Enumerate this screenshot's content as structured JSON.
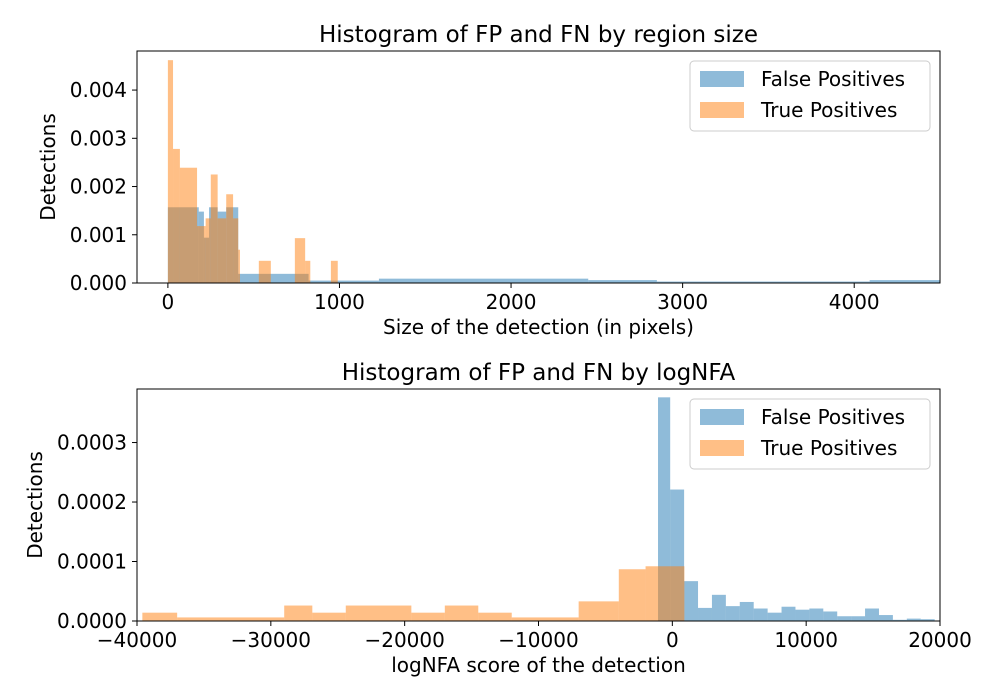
{
  "chart_data": [
    {
      "type": "histogram",
      "title": "Histogram of FP and FN by region size",
      "xlabel": "Size of the detection (in pixels)",
      "ylabel": "Detections",
      "xlim": [
        -180,
        4500
      ],
      "ylim": [
        0,
        0.00481
      ],
      "xticks": [
        {
          "v": 0,
          "label": "0"
        },
        {
          "v": 1000,
          "label": "1000"
        },
        {
          "v": 2000,
          "label": "2000"
        },
        {
          "v": 3000,
          "label": "3000"
        },
        {
          "v": 4000,
          "label": "4000"
        }
      ],
      "yticks": [
        {
          "v": 0,
          "label": "0.000"
        },
        {
          "v": 0.001,
          "label": "0.001"
        },
        {
          "v": 0.002,
          "label": "0.002"
        },
        {
          "v": 0.003,
          "label": "0.003"
        },
        {
          "v": 0.004,
          "label": "0.004"
        }
      ],
      "legend": {
        "position": "upper right"
      },
      "series": [
        {
          "name": "False Positives",
          "color": "#1f77b4",
          "opacity": 0.5,
          "bins": [
            {
              "x0": 0,
              "x1": 180,
              "y": 0.00157
            },
            {
              "x0": 180,
              "x1": 210,
              "y": 0.00148
            },
            {
              "x0": 210,
              "x1": 240,
              "y": 0.00094
            },
            {
              "x0": 240,
              "x1": 290,
              "y": 0.00157
            },
            {
              "x0": 290,
              "x1": 340,
              "y": 0.00148
            },
            {
              "x0": 340,
              "x1": 410,
              "y": 0.00157
            },
            {
              "x0": 410,
              "x1": 820,
              "y": 0.00019
            },
            {
              "x0": 820,
              "x1": 1230,
              "y": 5e-05
            },
            {
              "x0": 1230,
              "x1": 2450,
              "y": 9e-05
            },
            {
              "x0": 2450,
              "x1": 2850,
              "y": 6e-05
            },
            {
              "x0": 2850,
              "x1": 4090,
              "y": 3e-05
            },
            {
              "x0": 4090,
              "x1": 4500,
              "y": 6e-05
            }
          ]
        },
        {
          "name": "True Positives",
          "color": "#ff7f0e",
          "opacity": 0.5,
          "bins": [
            {
              "x0": 0,
              "x1": 30,
              "y": 0.00462
            },
            {
              "x0": 30,
              "x1": 70,
              "y": 0.00278
            },
            {
              "x0": 70,
              "x1": 170,
              "y": 0.00239
            },
            {
              "x0": 170,
              "x1": 220,
              "y": 0.00118
            },
            {
              "x0": 220,
              "x1": 250,
              "y": 0.00134
            },
            {
              "x0": 250,
              "x1": 290,
              "y": 0.00225
            },
            {
              "x0": 290,
              "x1": 340,
              "y": 0.00134
            },
            {
              "x0": 340,
              "x1": 380,
              "y": 0.00184
            },
            {
              "x0": 380,
              "x1": 410,
              "y": 0.00134
            },
            {
              "x0": 410,
              "x1": 420,
              "y": 0.00069
            },
            {
              "x0": 530,
              "x1": 600,
              "y": 0.00046
            },
            {
              "x0": 740,
              "x1": 800,
              "y": 0.00093
            },
            {
              "x0": 800,
              "x1": 830,
              "y": 0.00046
            },
            {
              "x0": 950,
              "x1": 990,
              "y": 0.00046
            }
          ]
        }
      ]
    },
    {
      "type": "histogram",
      "title": "Histogram of FP and FN by logNFA",
      "xlabel": "logNFA score of the detection",
      "ylabel": "Detections",
      "xlim": [
        -40000,
        20000
      ],
      "ylim": [
        0,
        0.00039
      ],
      "xticks": [
        {
          "v": -40000,
          "label": "−40000"
        },
        {
          "v": -30000,
          "label": "−30000"
        },
        {
          "v": -20000,
          "label": "−20000"
        },
        {
          "v": -10000,
          "label": "−10000"
        },
        {
          "v": 0,
          "label": "0"
        },
        {
          "v": 10000,
          "label": "10000"
        },
        {
          "v": 20000,
          "label": "20000"
        }
      ],
      "yticks": [
        {
          "v": 0,
          "label": "0.0000"
        },
        {
          "v": 0.0001,
          "label": "0.0001"
        },
        {
          "v": 0.0002,
          "label": "0.0002"
        },
        {
          "v": 0.0003,
          "label": "0.0003"
        }
      ],
      "legend": {
        "position": "upper right"
      },
      "series": [
        {
          "name": "False Positives",
          "color": "#1f77b4",
          "opacity": 0.5,
          "bins": [
            {
              "x0": -1070,
              "x1": -160,
              "y": 0.000376
            },
            {
              "x0": -160,
              "x1": 880,
              "y": 0.000221
            },
            {
              "x0": 880,
              "x1": 1920,
              "y": 6.7e-05
            },
            {
              "x0": 1920,
              "x1": 2960,
              "y": 2.2e-05
            },
            {
              "x0": 2960,
              "x1": 4000,
              "y": 4.4e-05
            },
            {
              "x0": 4000,
              "x1": 5040,
              "y": 2.5e-05
            },
            {
              "x0": 5040,
              "x1": 6080,
              "y": 3.2e-05
            },
            {
              "x0": 6080,
              "x1": 7120,
              "y": 2.1e-05
            },
            {
              "x0": 7120,
              "x1": 8160,
              "y": 1.4e-05
            },
            {
              "x0": 8160,
              "x1": 9200,
              "y": 2.4e-05
            },
            {
              "x0": 9200,
              "x1": 10240,
              "y": 1.9e-05
            },
            {
              "x0": 10240,
              "x1": 11280,
              "y": 2.1e-05
            },
            {
              "x0": 11280,
              "x1": 12320,
              "y": 1.6e-05
            },
            {
              "x0": 12320,
              "x1": 13360,
              "y": 8e-06
            },
            {
              "x0": 13360,
              "x1": 14400,
              "y": 8e-06
            },
            {
              "x0": 14400,
              "x1": 15440,
              "y": 2.1e-05
            },
            {
              "x0": 15440,
              "x1": 16480,
              "y": 1e-05
            },
            {
              "x0": 16480,
              "x1": 17520,
              "y": 2e-06
            },
            {
              "x0": 17520,
              "x1": 18560,
              "y": 4e-06
            },
            {
              "x0": 18560,
              "x1": 19600,
              "y": 3e-06
            }
          ]
        },
        {
          "name": "True Positives",
          "color": "#ff7f0e",
          "opacity": 0.5,
          "bins": [
            {
              "x0": -39600,
              "x1": -37000,
              "y": 1.4e-05
            },
            {
              "x0": -37000,
              "x1": -29000,
              "y": 6e-06
            },
            {
              "x0": -29000,
              "x1": -26900,
              "y": 2.6e-05
            },
            {
              "x0": -26900,
              "x1": -24400,
              "y": 1.4e-05
            },
            {
              "x0": -24400,
              "x1": -19500,
              "y": 2.6e-05
            },
            {
              "x0": -19500,
              "x1": -17000,
              "y": 1.4e-05
            },
            {
              "x0": -17000,
              "x1": -14500,
              "y": 2.6e-05
            },
            {
              "x0": -14500,
              "x1": -12000,
              "y": 1.4e-05
            },
            {
              "x0": -12000,
              "x1": -7000,
              "y": 6e-06
            },
            {
              "x0": -7000,
              "x1": -4000,
              "y": 3.3e-05
            },
            {
              "x0": -4000,
              "x1": -2000,
              "y": 8.7e-05
            },
            {
              "x0": -2000,
              "x1": 900,
              "y": 9.2e-05
            }
          ]
        }
      ]
    }
  ]
}
